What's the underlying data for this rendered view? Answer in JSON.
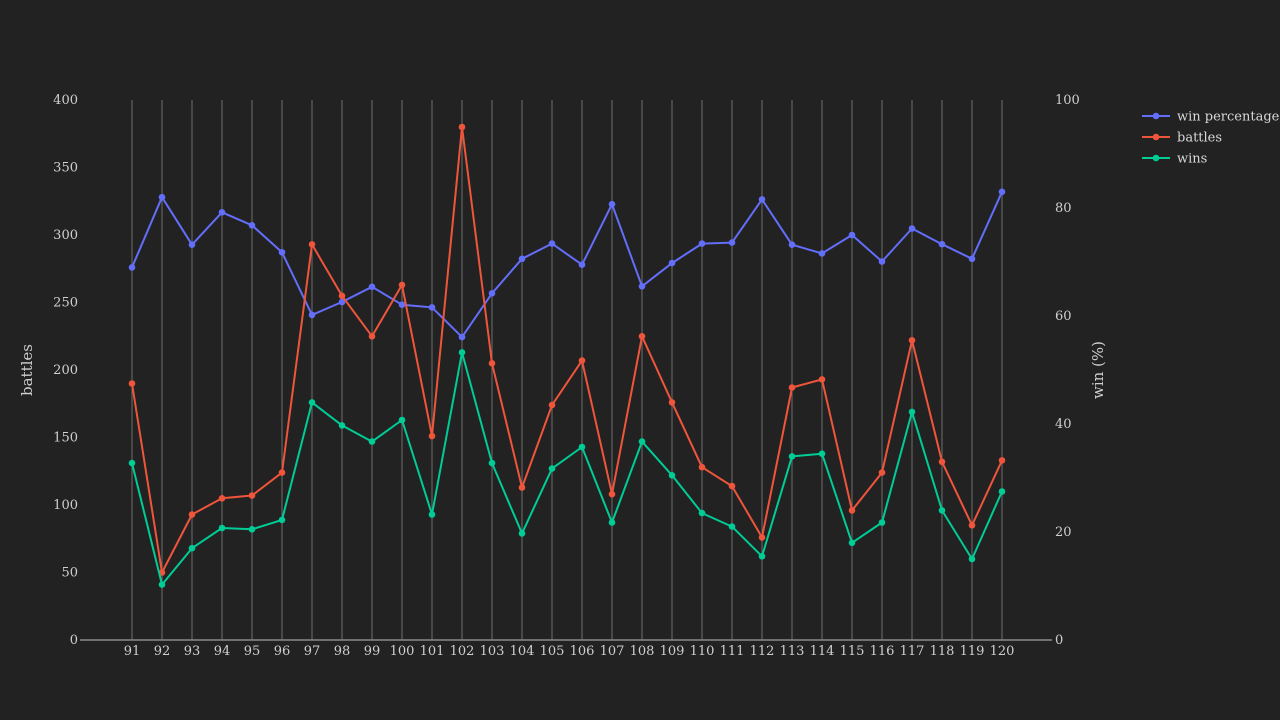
{
  "chart_data": {
    "type": "line",
    "x": [
      91,
      92,
      93,
      94,
      95,
      96,
      97,
      98,
      99,
      100,
      101,
      102,
      103,
      104,
      105,
      106,
      107,
      108,
      109,
      110,
      111,
      112,
      113,
      114,
      115,
      116,
      117,
      118,
      119,
      120
    ],
    "y_left": {
      "label": "battles",
      "range": [
        0,
        400
      ],
      "ticks": [
        0,
        50,
        100,
        150,
        200,
        250,
        300,
        350,
        400
      ]
    },
    "y_right": {
      "label": "win (%)",
      "range": [
        0,
        100
      ],
      "ticks": [
        0,
        20,
        40,
        60,
        80,
        100
      ]
    },
    "grid": "vertical",
    "legend_position": "top-right",
    "series": [
      {
        "name": "win percentage",
        "axis": "right",
        "color": "#636efa",
        "values": [
          69,
          82,
          73.2,
          79.2,
          76.8,
          71.8,
          60.2,
          62.6,
          65.4,
          62.1,
          61.6,
          56.1,
          64.2,
          70.6,
          73.4,
          69.5,
          80.7,
          65.5,
          69.8,
          73.4,
          73.6,
          81.6,
          73.2,
          71.6,
          75,
          70.1,
          76.2,
          73.3,
          70.6,
          83
        ]
      },
      {
        "name": "battles",
        "axis": "left",
        "color": "#ef553b",
        "values": [
          190,
          50,
          93,
          105,
          107,
          124,
          293,
          255,
          225,
          263,
          151,
          380,
          205,
          113,
          174,
          207,
          108,
          225,
          176,
          128,
          114,
          76,
          187,
          193,
          96,
          124,
          222,
          132,
          85,
          133
        ]
      },
      {
        "name": "wins",
        "axis": "left",
        "color": "#00cc96",
        "values": [
          131,
          41,
          68,
          83,
          82,
          89,
          176,
          159,
          147,
          163,
          93,
          213,
          131,
          79,
          127,
          143,
          87,
          147,
          122,
          94,
          84,
          62,
          136,
          138,
          72,
          87,
          169,
          96,
          60,
          110
        ]
      }
    ]
  }
}
